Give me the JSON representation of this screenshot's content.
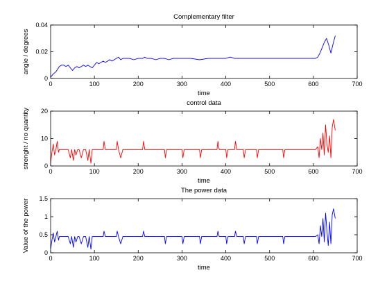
{
  "chart_data": [
    {
      "type": "line",
      "title": "Complementary filter",
      "xlabel": "time",
      "ylabel": "angle / degrees",
      "xlim": [
        0,
        700
      ],
      "ylim": [
        0,
        0.04
      ],
      "xticks": [
        "0",
        "100",
        "200",
        "300",
        "400",
        "500",
        "600",
        "700"
      ],
      "yticks": [
        "0",
        "0.02",
        "0.04"
      ],
      "grid": false,
      "color": "#0000ff",
      "series": [
        {
          "x": [
            0,
            5,
            8,
            12,
            16,
            20,
            25,
            30,
            35,
            40,
            45,
            50,
            55,
            60,
            65,
            70,
            75,
            80,
            85,
            90,
            95,
            100,
            105,
            110,
            115,
            120,
            125,
            130,
            135,
            140,
            145,
            150,
            155,
            160,
            165,
            170,
            180,
            190,
            200,
            210,
            215,
            220,
            230,
            240,
            250,
            260,
            270,
            280,
            290,
            300,
            320,
            340,
            360,
            380,
            400,
            410,
            420,
            440,
            460,
            480,
            500,
            520,
            540,
            560,
            580,
            600,
            605,
            610,
            615,
            620,
            625,
            630,
            635,
            640,
            645,
            650
          ],
          "y": [
            0.001,
            0.003,
            0.004,
            0.005,
            0.007,
            0.009,
            0.01,
            0.01,
            0.009,
            0.01,
            0.008,
            0.006,
            0.008,
            0.009,
            0.008,
            0.009,
            0.01,
            0.009,
            0.01,
            0.009,
            0.008,
            0.01,
            0.012,
            0.011,
            0.012,
            0.013,
            0.012,
            0.013,
            0.014,
            0.013,
            0.014,
            0.015,
            0.016,
            0.014,
            0.015,
            0.015,
            0.015,
            0.014,
            0.015,
            0.015,
            0.016,
            0.015,
            0.015,
            0.014,
            0.015,
            0.015,
            0.014,
            0.015,
            0.015,
            0.015,
            0.015,
            0.014,
            0.015,
            0.015,
            0.015,
            0.016,
            0.015,
            0.015,
            0.015,
            0.015,
            0.015,
            0.015,
            0.015,
            0.015,
            0.015,
            0.015,
            0.015,
            0.016,
            0.019,
            0.023,
            0.027,
            0.03,
            0.025,
            0.019,
            0.026,
            0.032
          ]
        }
      ]
    },
    {
      "type": "line",
      "title": "control data",
      "xlabel": "time",
      "ylabel": "strenght / no quantity",
      "xlim": [
        0,
        700
      ],
      "ylim": [
        0,
        20
      ],
      "xticks": [
        "0",
        "100",
        "200",
        "300",
        "400",
        "500",
        "600",
        "700"
      ],
      "yticks": [
        "0",
        "10",
        "20"
      ],
      "grid": false,
      "color": "#ff0000",
      "series": [
        {
          "x": [
            0,
            3,
            6,
            9,
            12,
            15,
            18,
            20,
            25,
            30,
            35,
            40,
            45,
            48,
            52,
            55,
            58,
            62,
            65,
            70,
            75,
            80,
            85,
            88,
            92,
            95,
            100,
            110,
            120,
            122,
            125,
            140,
            150,
            152,
            155,
            160,
            165,
            180,
            200,
            210,
            212,
            215,
            220,
            240,
            260,
            262,
            265,
            300,
            302,
            305,
            340,
            342,
            345,
            380,
            382,
            385,
            400,
            402,
            405,
            420,
            422,
            425,
            440,
            442,
            445,
            470,
            472,
            475,
            500,
            530,
            532,
            535,
            560,
            600,
            605,
            610,
            613,
            616,
            619,
            622,
            625,
            628,
            631,
            634,
            637,
            640,
            643,
            646,
            650
          ],
          "y": [
            1,
            5,
            8,
            4,
            6,
            9,
            5,
            6,
            6,
            6,
            6,
            6,
            3,
            6,
            2,
            6,
            4,
            6,
            6,
            3,
            6,
            6,
            2,
            6,
            1,
            6,
            6,
            6,
            6,
            9,
            6,
            6,
            6,
            9,
            6,
            3,
            6,
            6,
            6,
            6,
            9,
            6,
            6,
            6,
            6,
            3,
            6,
            6,
            3,
            6,
            6,
            3,
            6,
            6,
            9,
            6,
            6,
            3,
            6,
            6,
            9,
            6,
            6,
            3,
            6,
            6,
            3,
            6,
            6,
            6,
            3,
            6,
            6,
            6,
            6,
            7,
            3,
            10,
            6,
            12,
            4,
            15,
            8,
            5,
            11,
            3,
            14,
            17,
            13
          ]
        }
      ]
    },
    {
      "type": "line",
      "title": "The power data",
      "xlabel": "time",
      "ylabel": "Value of the power",
      "xlim": [
        0,
        700
      ],
      "ylim": [
        0,
        1.5
      ],
      "xticks": [
        "0",
        "100",
        "200",
        "300",
        "400",
        "500",
        "600",
        "700"
      ],
      "yticks": [
        "0",
        "0.5",
        "1",
        "1.5"
      ],
      "grid": false,
      "color": "#0000ff",
      "series": [
        {
          "x": [
            0,
            3,
            6,
            9,
            12,
            15,
            18,
            20,
            25,
            30,
            35,
            40,
            45,
            48,
            52,
            55,
            58,
            62,
            65,
            70,
            75,
            80,
            85,
            88,
            92,
            95,
            100,
            110,
            120,
            122,
            125,
            140,
            150,
            152,
            155,
            160,
            165,
            180,
            200,
            210,
            212,
            215,
            220,
            240,
            260,
            262,
            265,
            300,
            302,
            305,
            340,
            342,
            345,
            380,
            382,
            385,
            400,
            402,
            405,
            420,
            422,
            425,
            440,
            442,
            445,
            470,
            472,
            475,
            500,
            530,
            532,
            535,
            560,
            600,
            605,
            610,
            613,
            616,
            619,
            622,
            625,
            628,
            631,
            634,
            637,
            640,
            643,
            646,
            650
          ],
          "y": [
            0.1,
            0.35,
            0.55,
            0.3,
            0.45,
            0.6,
            0.35,
            0.45,
            0.45,
            0.45,
            0.45,
            0.45,
            0.25,
            0.45,
            0.15,
            0.45,
            0.3,
            0.45,
            0.45,
            0.25,
            0.45,
            0.45,
            0.15,
            0.45,
            0.1,
            0.45,
            0.45,
            0.45,
            0.45,
            0.6,
            0.45,
            0.45,
            0.45,
            0.6,
            0.45,
            0.25,
            0.45,
            0.45,
            0.45,
            0.45,
            0.6,
            0.45,
            0.45,
            0.45,
            0.45,
            0.25,
            0.45,
            0.45,
            0.25,
            0.45,
            0.45,
            0.25,
            0.45,
            0.45,
            0.6,
            0.45,
            0.45,
            0.25,
            0.45,
            0.45,
            0.6,
            0.45,
            0.45,
            0.25,
            0.45,
            0.45,
            0.25,
            0.45,
            0.45,
            0.45,
            0.25,
            0.45,
            0.45,
            0.45,
            0.45,
            0.5,
            0.25,
            0.75,
            0.45,
            0.95,
            0.3,
            1.1,
            0.6,
            0.2,
            0.85,
            0.25,
            1.05,
            1.22,
            0.95
          ]
        }
      ]
    }
  ]
}
